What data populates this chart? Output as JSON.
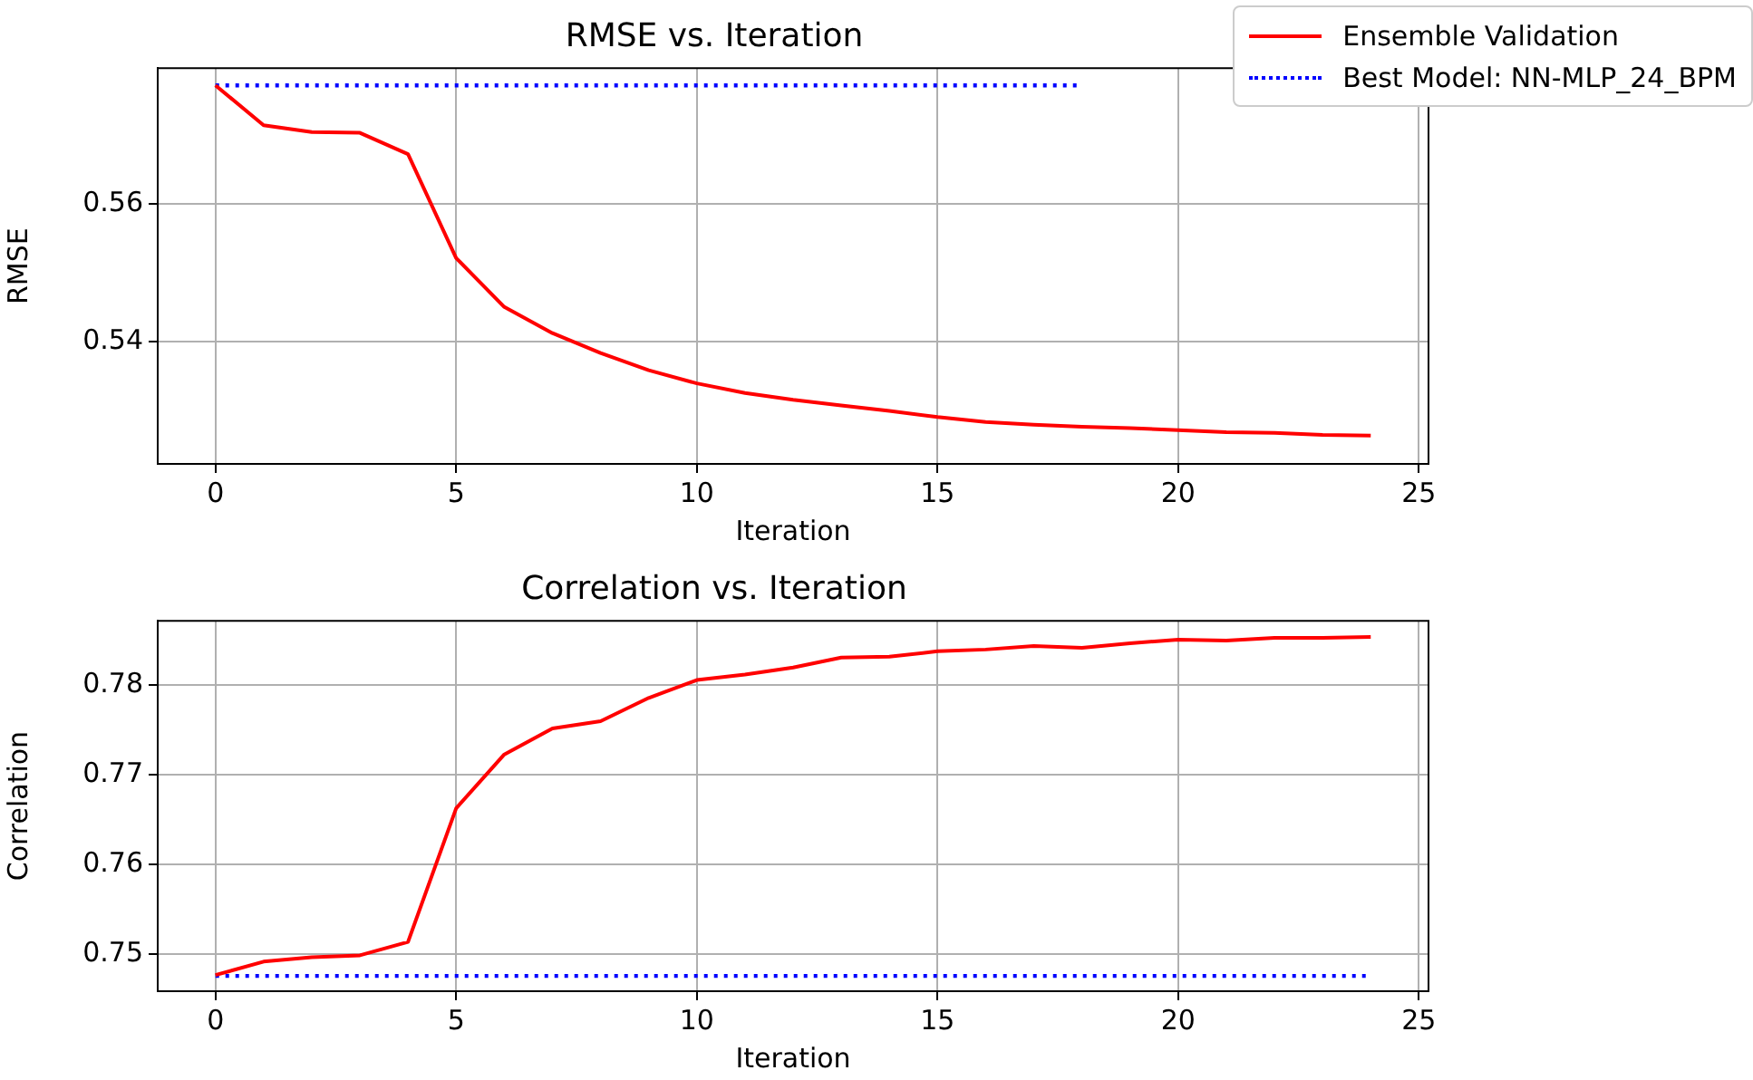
{
  "chart_data": [
    {
      "type": "line",
      "title": "RMSE vs. Iteration",
      "xlabel": "Iteration",
      "ylabel": "RMSE",
      "x": [
        0,
        1,
        2,
        3,
        4,
        5,
        6,
        7,
        8,
        9,
        10,
        11,
        12,
        13,
        14,
        15,
        16,
        17,
        18,
        19,
        20,
        21,
        22,
        23,
        24
      ],
      "series": [
        {
          "name": "Ensemble Validation",
          "color": "#ff0000",
          "line_style": "solid",
          "values": [
            0.5772,
            0.5714,
            0.5704,
            0.5703,
            0.5672,
            0.5521,
            0.545,
            0.5412,
            0.5383,
            0.5358,
            0.5339,
            0.5325,
            0.5315,
            0.5307,
            0.5299,
            0.529,
            0.5283,
            0.5279,
            0.5276,
            0.5274,
            0.5271,
            0.5268,
            0.5267,
            0.5264,
            0.5263
          ]
        },
        {
          "name": "Best Model: NN-MLP_24_BPM",
          "color": "#0000ff",
          "line_style": "dotted",
          "values": [
            0.5772,
            0.5772,
            0.5772,
            0.5772,
            0.5772,
            0.5772,
            0.5772,
            0.5772,
            0.5772,
            0.5772,
            0.5772,
            0.5772,
            0.5772,
            0.5772,
            0.5772,
            0.5772,
            0.5772,
            0.5772,
            0.5772,
            null,
            null,
            null,
            null,
            null,
            null
          ]
        }
      ],
      "xlim": [
        -1.2,
        25.2
      ],
      "xticks": [
        0,
        5,
        10,
        15,
        20,
        25
      ],
      "ylim": [
        0.5222,
        0.5797
      ],
      "yticks": [
        0.54,
        0.56
      ],
      "grid": true,
      "marker": "none",
      "legend": "top right"
    },
    {
      "type": "line",
      "title": "Correlation vs. Iteration",
      "xlabel": "Iteration",
      "ylabel": "Correlation",
      "x": [
        0,
        1,
        2,
        3,
        4,
        5,
        6,
        7,
        8,
        9,
        10,
        11,
        12,
        13,
        14,
        15,
        16,
        17,
        18,
        19,
        20,
        21,
        22,
        23,
        24
      ],
      "series": [
        {
          "color": "#ff0000",
          "line_style": "solid",
          "values": [
            0.7477,
            0.7492,
            0.7497,
            0.7499,
            0.7514,
            0.7663,
            0.7723,
            0.7752,
            0.776,
            0.7786,
            0.7806,
            0.7812,
            0.782,
            0.7831,
            0.7832,
            0.7838,
            0.784,
            0.7844,
            0.7842,
            0.7847,
            0.7851,
            0.785,
            0.7853,
            0.7853,
            0.7854
          ]
        },
        {
          "color": "#0000ff",
          "line_style": "dotted",
          "values": [
            0.7476,
            0.7476,
            0.7476,
            0.7476,
            0.7476,
            0.7476,
            0.7476,
            0.7476,
            0.7476,
            0.7476,
            0.7476,
            0.7476,
            0.7476,
            0.7476,
            0.7476,
            0.7476,
            0.7476,
            0.7476,
            0.7476,
            0.7476,
            0.7476,
            0.7476,
            0.7476,
            0.7476,
            0.7476
          ]
        }
      ],
      "xlim": [
        -1.2,
        25.2
      ],
      "xticks": [
        0,
        5,
        10,
        15,
        20,
        25
      ],
      "ylim": [
        0.7459,
        0.7872
      ],
      "yticks": [
        0.75,
        0.76,
        0.77,
        0.78
      ],
      "grid": true,
      "marker": "none"
    }
  ]
}
